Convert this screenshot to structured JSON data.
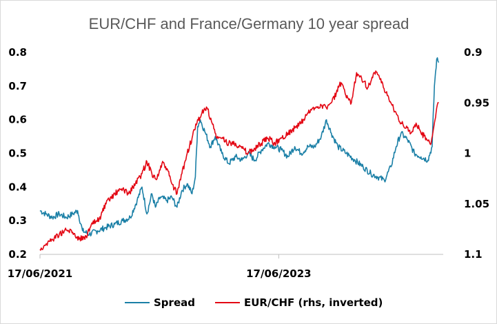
{
  "chart_data": {
    "type": "line",
    "title": "EUR/CHF and France/Germany 10 year spread",
    "x_start": "17/06/2021",
    "x_end": "01/11/2024",
    "x_ticks": [
      "17/06/2021",
      "17/06/2023"
    ],
    "y_left": {
      "range": [
        0.2,
        0.8
      ],
      "ticks": [
        "0.2",
        "0.3",
        "0.4",
        "0.5",
        "0.6",
        "0.7",
        "0.8"
      ]
    },
    "y_right": {
      "range": [
        0.9,
        1.1
      ],
      "inverted": true,
      "ticks": [
        "0.9",
        "0.95",
        "1",
        "1.05",
        "1.1"
      ]
    },
    "legend_position": "bottom",
    "series": [
      {
        "name": "Spread",
        "axis": "left",
        "color": "#1a7fa6",
        "points": [
          [
            "2021-06-17",
            0.33
          ],
          [
            "2021-07-05",
            0.32
          ],
          [
            "2021-07-25",
            0.31
          ],
          [
            "2021-08-15",
            0.32
          ],
          [
            "2021-09-05",
            0.31
          ],
          [
            "2021-09-25",
            0.32
          ],
          [
            "2021-10-10",
            0.33
          ],
          [
            "2021-10-25",
            0.27
          ],
          [
            "2021-11-15",
            0.26
          ],
          [
            "2021-12-10",
            0.27
          ],
          [
            "2022-01-05",
            0.28
          ],
          [
            "2022-02-01",
            0.29
          ],
          [
            "2022-02-25",
            0.3
          ],
          [
            "2022-03-20",
            0.31
          ],
          [
            "2022-04-10",
            0.36
          ],
          [
            "2022-04-25",
            0.4
          ],
          [
            "2022-05-10",
            0.32
          ],
          [
            "2022-05-25",
            0.38
          ],
          [
            "2022-06-05",
            0.34
          ],
          [
            "2022-06-20",
            0.37
          ],
          [
            "2022-07-10",
            0.36
          ],
          [
            "2022-07-25",
            0.37
          ],
          [
            "2022-08-10",
            0.34
          ],
          [
            "2022-08-25",
            0.39
          ],
          [
            "2022-09-10",
            0.41
          ],
          [
            "2022-09-25",
            0.38
          ],
          [
            "2022-10-05",
            0.43
          ],
          [
            "2022-10-12",
            0.58
          ],
          [
            "2022-10-20",
            0.6
          ],
          [
            "2022-11-05",
            0.56
          ],
          [
            "2022-11-20",
            0.52
          ],
          [
            "2022-12-05",
            0.55
          ],
          [
            "2022-12-25",
            0.5
          ],
          [
            "2023-01-15",
            0.47
          ],
          [
            "2023-02-05",
            0.49
          ],
          [
            "2023-02-25",
            0.48
          ],
          [
            "2023-03-15",
            0.5
          ],
          [
            "2023-04-05",
            0.48
          ],
          [
            "2023-04-25",
            0.51
          ],
          [
            "2023-05-15",
            0.53
          ],
          [
            "2023-06-05",
            0.52
          ],
          [
            "2023-06-25",
            0.51
          ],
          [
            "2023-07-15",
            0.49
          ],
          [
            "2023-08-05",
            0.52
          ],
          [
            "2023-08-25",
            0.5
          ],
          [
            "2023-09-15",
            0.52
          ],
          [
            "2023-10-05",
            0.52
          ],
          [
            "2023-10-25",
            0.55
          ],
          [
            "2023-11-10",
            0.6
          ],
          [
            "2023-11-25",
            0.56
          ],
          [
            "2023-12-15",
            0.52
          ],
          [
            "2024-01-10",
            0.5
          ],
          [
            "2024-02-05",
            0.48
          ],
          [
            "2024-03-01",
            0.46
          ],
          [
            "2024-03-25",
            0.44
          ],
          [
            "2024-04-15",
            0.43
          ],
          [
            "2024-05-05",
            0.42
          ],
          [
            "2024-05-25",
            0.46
          ],
          [
            "2024-06-10",
            0.52
          ],
          [
            "2024-06-25",
            0.56
          ],
          [
            "2024-07-15",
            0.54
          ],
          [
            "2024-08-05",
            0.5
          ],
          [
            "2024-08-25",
            0.49
          ],
          [
            "2024-09-15",
            0.48
          ],
          [
            "2024-09-28",
            0.52
          ],
          [
            "2024-10-05",
            0.7
          ],
          [
            "2024-10-12",
            0.78
          ],
          [
            "2024-10-18",
            0.77
          ]
        ]
      },
      {
        "name": "EUR/CHF (rhs, inverted)",
        "axis": "right",
        "color": "#e30613",
        "points": [
          [
            "2021-06-17",
            1.095
          ],
          [
            "2021-07-05",
            1.09
          ],
          [
            "2021-07-25",
            1.085
          ],
          [
            "2021-08-15",
            1.08
          ],
          [
            "2021-09-05",
            1.076
          ],
          [
            "2021-09-25",
            1.078
          ],
          [
            "2021-10-15",
            1.085
          ],
          [
            "2021-11-05",
            1.082
          ],
          [
            "2021-11-25",
            1.07
          ],
          [
            "2021-12-15",
            1.065
          ],
          [
            "2022-01-05",
            1.05
          ],
          [
            "2022-02-01",
            1.04
          ],
          [
            "2022-02-25",
            1.035
          ],
          [
            "2022-03-15",
            1.04
          ],
          [
            "2022-04-05",
            1.03
          ],
          [
            "2022-04-25",
            1.02
          ],
          [
            "2022-05-10",
            1.008
          ],
          [
            "2022-05-25",
            1.02
          ],
          [
            "2022-06-10",
            1.025
          ],
          [
            "2022-06-25",
            1.01
          ],
          [
            "2022-07-10",
            1.015
          ],
          [
            "2022-07-25",
            1.03
          ],
          [
            "2022-08-10",
            1.04
          ],
          [
            "2022-08-25",
            1.02
          ],
          [
            "2022-09-10",
            1.0
          ],
          [
            "2022-09-25",
            0.985
          ],
          [
            "2022-10-10",
            0.97
          ],
          [
            "2022-10-25",
            0.96
          ],
          [
            "2022-11-10",
            0.955
          ],
          [
            "2022-11-25",
            0.97
          ],
          [
            "2022-12-10",
            0.985
          ],
          [
            "2022-12-25",
            0.985
          ],
          [
            "2023-01-15",
            0.99
          ],
          [
            "2023-02-05",
            0.99
          ],
          [
            "2023-02-25",
            0.995
          ],
          [
            "2023-03-15",
            1.0
          ],
          [
            "2023-04-05",
            0.995
          ],
          [
            "2023-04-25",
            0.99
          ],
          [
            "2023-05-15",
            0.985
          ],
          [
            "2023-06-05",
            0.99
          ],
          [
            "2023-06-25",
            0.985
          ],
          [
            "2023-07-15",
            0.98
          ],
          [
            "2023-08-05",
            0.975
          ],
          [
            "2023-08-25",
            0.97
          ],
          [
            "2023-09-15",
            0.96
          ],
          [
            "2023-10-05",
            0.955
          ],
          [
            "2023-10-25",
            0.952
          ],
          [
            "2023-11-10",
            0.955
          ],
          [
            "2023-11-25",
            0.95
          ],
          [
            "2023-12-10",
            0.94
          ],
          [
            "2023-12-25",
            0.93
          ],
          [
            "2024-01-10",
            0.945
          ],
          [
            "2024-01-25",
            0.95
          ],
          [
            "2024-02-10",
            0.92
          ],
          [
            "2024-02-25",
            0.925
          ],
          [
            "2024-03-15",
            0.935
          ],
          [
            "2024-04-05",
            0.92
          ],
          [
            "2024-04-20",
            0.925
          ],
          [
            "2024-05-10",
            0.94
          ],
          [
            "2024-05-25",
            0.95
          ],
          [
            "2024-06-10",
            0.96
          ],
          [
            "2024-06-25",
            0.97
          ],
          [
            "2024-07-10",
            0.975
          ],
          [
            "2024-07-25",
            0.98
          ],
          [
            "2024-08-10",
            0.97
          ],
          [
            "2024-08-25",
            0.98
          ],
          [
            "2024-09-10",
            0.985
          ],
          [
            "2024-09-25",
            0.99
          ],
          [
            "2024-10-05",
            0.97
          ],
          [
            "2024-10-12",
            0.955
          ],
          [
            "2024-10-18",
            0.95
          ]
        ]
      }
    ]
  }
}
